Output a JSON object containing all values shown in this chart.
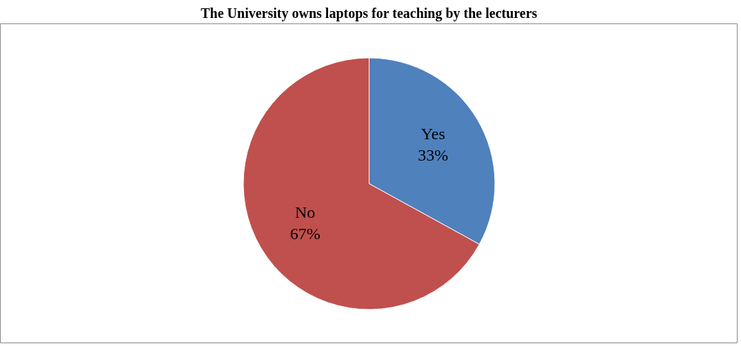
{
  "chart_data": {
    "type": "pie",
    "title": "The University owns laptops for teaching by the lecturers",
    "categories": [
      "Yes",
      "No"
    ],
    "values": [
      33,
      67
    ],
    "colors": [
      "#4f81bd",
      "#c0504d"
    ],
    "value_labels": [
      "33%",
      "67%"
    ],
    "legend": false
  }
}
